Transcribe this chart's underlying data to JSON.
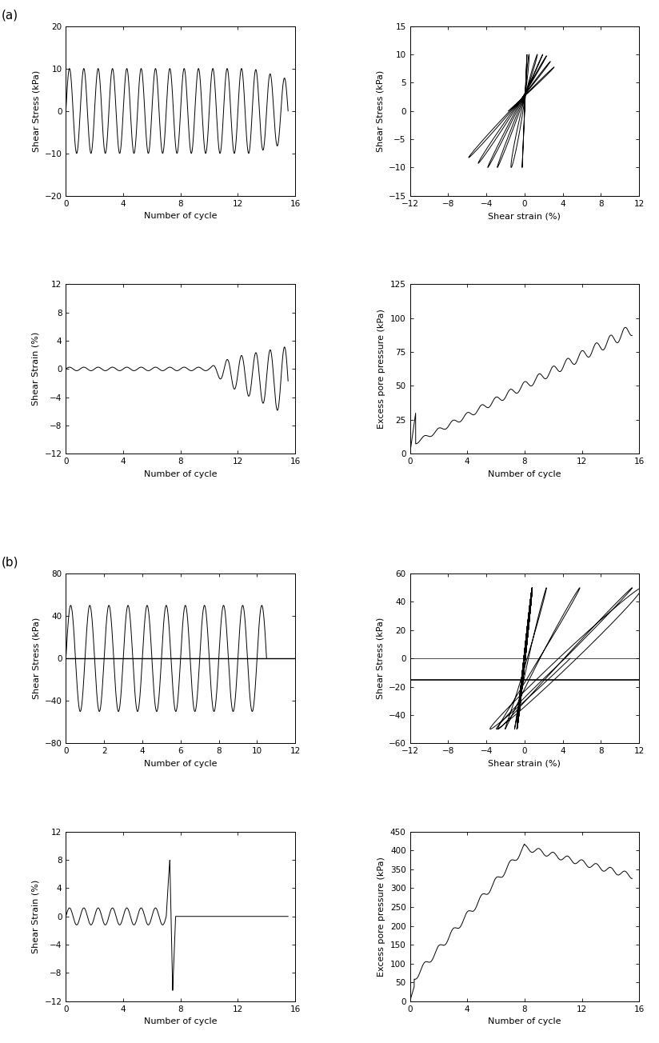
{
  "panel_a": {
    "label": "(a)",
    "plot1": {
      "xlabel": "Number of cycle",
      "ylabel": "Shear Stress (kPa)",
      "xlim": [
        0,
        16
      ],
      "ylim": [
        -20,
        20
      ],
      "xticks": [
        0,
        4,
        8,
        12,
        16
      ],
      "yticks": [
        -20,
        -10,
        0,
        10,
        20
      ]
    },
    "plot2": {
      "xlabel": "Shear strain (%)",
      "ylabel": "Shear Stress (kPa)",
      "xlim": [
        -12,
        12
      ],
      "ylim": [
        -15,
        15
      ],
      "xticks": [
        -12,
        -8,
        -4,
        0,
        4,
        8,
        12
      ],
      "yticks": [
        -15,
        -10,
        -5,
        0,
        5,
        10,
        15
      ]
    },
    "plot3": {
      "xlabel": "Number of cycle",
      "ylabel": "Shear Strain (%)",
      "xlim": [
        0,
        16
      ],
      "ylim": [
        -12,
        12
      ],
      "xticks": [
        0,
        4,
        8,
        12,
        16
      ],
      "yticks": [
        -12,
        -8,
        -4,
        0,
        4,
        8,
        12
      ]
    },
    "plot4": {
      "xlabel": "Number of cycle",
      "ylabel": "Excess pore pressure (kPa)",
      "xlim": [
        0,
        16
      ],
      "ylim": [
        0,
        125
      ],
      "xticks": [
        0,
        4,
        8,
        12,
        16
      ],
      "yticks": [
        0,
        25,
        50,
        75,
        100,
        125
      ]
    }
  },
  "panel_b": {
    "label": "(b)",
    "plot1": {
      "xlabel": "Number of cycle",
      "ylabel": "Shear Stress (kPa)",
      "xlim": [
        0,
        12
      ],
      "ylim": [
        -80,
        80
      ],
      "xticks": [
        0,
        2,
        4,
        6,
        8,
        10,
        12
      ],
      "yticks": [
        -80,
        -40,
        0,
        40,
        80
      ]
    },
    "plot2": {
      "xlabel": "Shear strain (%)",
      "ylabel": "Shear Stress (kPa)",
      "xlim": [
        -12,
        12
      ],
      "ylim": [
        -60,
        60
      ],
      "xticks": [
        -12,
        -8,
        -4,
        0,
        4,
        8,
        12
      ],
      "yticks": [
        -60,
        -40,
        -20,
        0,
        20,
        40,
        60
      ]
    },
    "plot3": {
      "xlabel": "Number of cycle",
      "ylabel": "Shear Strain (%)",
      "xlim": [
        0,
        16
      ],
      "ylim": [
        -12,
        12
      ],
      "xticks": [
        0,
        4,
        8,
        12,
        16
      ],
      "yticks": [
        -12,
        -8,
        -4,
        0,
        4,
        8,
        12
      ]
    },
    "plot4": {
      "xlabel": "Number of cycle",
      "ylabel": "Excess pore pressure (kPa)",
      "xlim": [
        0,
        16
      ],
      "ylim": [
        0,
        450
      ],
      "xticks": [
        0,
        4,
        8,
        12,
        16
      ],
      "yticks": [
        0,
        50,
        100,
        150,
        200,
        250,
        300,
        350,
        400,
        450
      ]
    }
  },
  "line_color": "#000000",
  "line_width": 0.7,
  "font_size": 8,
  "tick_font_size": 7.5
}
